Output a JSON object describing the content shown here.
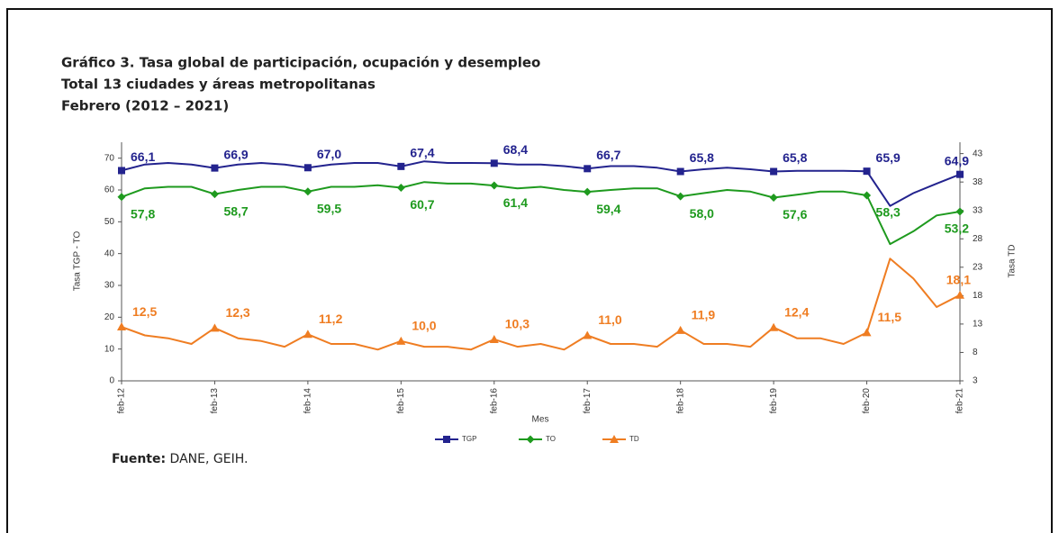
{
  "chart_data": {
    "type": "line",
    "title": "Gráfico 3. Tasa global de participación, ocupación y desempleo",
    "subtitle": "Total 13 ciudades y áreas metropolitanas",
    "period": "Febrero (2012 – 2021)",
    "x_label": "Mes",
    "y_label": "Tasa TGP - TO",
    "y2_label": "Tasa TD",
    "source": {
      "label": "Fuente:",
      "text": "DANE, GEIH."
    },
    "categories": [
      "feb-12",
      null,
      null,
      null,
      "feb-13",
      null,
      null,
      null,
      "feb-14",
      null,
      null,
      null,
      "feb-15",
      null,
      null,
      null,
      "feb-16",
      null,
      null,
      null,
      "feb-17",
      null,
      null,
      null,
      "feb-18",
      null,
      null,
      null,
      "feb-19",
      null,
      null,
      null,
      "feb-20",
      null,
      null,
      null,
      "feb-21"
    ],
    "ylim": [
      0,
      75
    ],
    "yticks": [
      0,
      10,
      20,
      30,
      40,
      50,
      60,
      70
    ],
    "y2lim": [
      3,
      45
    ],
    "y2ticks": [
      3,
      8,
      13,
      18,
      23,
      28,
      33,
      38,
      43
    ],
    "legend": "bottom",
    "series": [
      {
        "name": "TGP",
        "color": "#23238e",
        "marker": "square",
        "values": [
          66.1,
          68,
          68.5,
          68,
          66.9,
          68,
          68.5,
          68,
          67.0,
          68,
          68.5,
          68.5,
          67.4,
          69,
          68.5,
          68.5,
          68.4,
          68,
          68,
          67.5,
          66.7,
          67.5,
          67.5,
          67,
          65.8,
          66.5,
          67,
          66.5,
          65.8,
          66,
          66,
          66,
          65.9,
          55,
          59,
          62,
          64.9
        ],
        "value_labels": [
          "66,1",
          null,
          null,
          null,
          "66,9",
          null,
          null,
          null,
          "67,0",
          null,
          null,
          null,
          "67,4",
          null,
          null,
          null,
          "68,4",
          null,
          null,
          null,
          "66,7",
          null,
          null,
          null,
          "65,8",
          null,
          null,
          null,
          "65,8",
          null,
          null,
          null,
          "65,9",
          null,
          null,
          null,
          "64,9"
        ]
      },
      {
        "name": "TO",
        "color": "#1e9a1e",
        "marker": "diamond",
        "values": [
          57.8,
          60.5,
          61,
          61,
          58.7,
          60,
          61,
          61,
          59.5,
          61,
          61,
          61.5,
          60.7,
          62.5,
          62,
          62,
          61.4,
          60.5,
          61,
          60,
          59.4,
          60,
          60.5,
          60.5,
          58.0,
          59,
          60,
          59.5,
          57.6,
          58.5,
          59.5,
          59.5,
          58.3,
          43,
          47,
          52,
          53.2
        ],
        "value_labels": [
          "57,8",
          null,
          null,
          null,
          "58,7",
          null,
          null,
          null,
          "59,5",
          null,
          null,
          null,
          "60,7",
          null,
          null,
          null,
          "61,4",
          null,
          null,
          null,
          "59,4",
          null,
          null,
          null,
          "58,0",
          null,
          null,
          null,
          "57,6",
          null,
          null,
          null,
          "58,3",
          null,
          null,
          null,
          "53,2"
        ]
      },
      {
        "name": "TD",
        "color": "#ef7d22",
        "marker": "triangle",
        "axis": "y2",
        "values": [
          12.5,
          11,
          10.5,
          9.5,
          12.3,
          10.5,
          10,
          9,
          11.2,
          9.5,
          9.5,
          8.5,
          10.0,
          9,
          9,
          8.5,
          10.3,
          9,
          9.5,
          8.5,
          11.0,
          9.5,
          9.5,
          9,
          11.9,
          9.5,
          9.5,
          9,
          12.4,
          10.5,
          10.5,
          9.5,
          11.5,
          24.5,
          21,
          16,
          18.1
        ],
        "value_labels": [
          "12,5",
          null,
          null,
          null,
          "12,3",
          null,
          null,
          null,
          "11,2",
          null,
          null,
          null,
          "10,0",
          null,
          null,
          null,
          "10,3",
          null,
          null,
          null,
          "11,0",
          null,
          null,
          null,
          "11,9",
          null,
          null,
          null,
          "12,4",
          null,
          null,
          null,
          "11,5",
          null,
          null,
          null,
          "18,1"
        ]
      }
    ]
  }
}
